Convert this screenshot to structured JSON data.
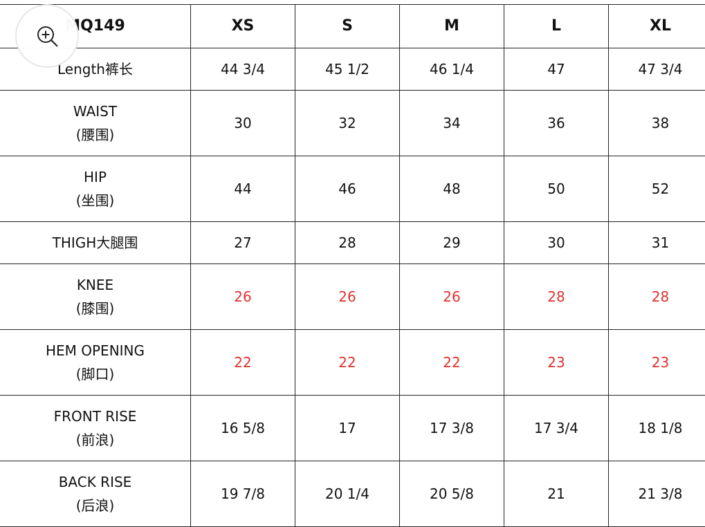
{
  "header": {
    "model": "MQ149",
    "sizes": [
      "XS",
      "S",
      "M",
      "L",
      "XL"
    ]
  },
  "rows": [
    {
      "label": [
        "Length裤长"
      ],
      "values": [
        "44 3/4",
        "45 1/2",
        "46 1/4",
        "47",
        "47 3/4"
      ],
      "highlight": false
    },
    {
      "label": [
        "WAIST",
        "(腰围)"
      ],
      "values": [
        "30",
        "32",
        "34",
        "36",
        "38"
      ],
      "highlight": false
    },
    {
      "label": [
        "HIP",
        "(坐围)"
      ],
      "values": [
        "44",
        "46",
        "48",
        "50",
        "52"
      ],
      "highlight": false
    },
    {
      "label": [
        "THIGH大腿围"
      ],
      "values": [
        "27",
        "28",
        "29",
        "30",
        "31"
      ],
      "highlight": false
    },
    {
      "label": [
        "KNEE",
        "(膝围)"
      ],
      "values": [
        "26",
        "26",
        "26",
        "28",
        "28"
      ],
      "highlight": true
    },
    {
      "label": [
        "HEM OPENING",
        "(脚口)"
      ],
      "values": [
        "22",
        "22",
        "22",
        "23",
        "23"
      ],
      "highlight": true
    },
    {
      "label": [
        "FRONT RISE",
        "(前浪)"
      ],
      "values": [
        "16 5/8",
        "17",
        "17 3/8",
        "17 3/4",
        "18 1/8"
      ],
      "highlight": false
    },
    {
      "label": [
        "BACK RISE",
        "(后浪)"
      ],
      "values": [
        "19 7/8",
        "20 1/4",
        "20 5/8",
        "21",
        "21 3/8"
      ],
      "highlight": false
    }
  ],
  "colors": {
    "highlight": "#e2302e",
    "border": "#222222"
  },
  "zoom_button": {
    "icon": "zoom-in-icon"
  }
}
